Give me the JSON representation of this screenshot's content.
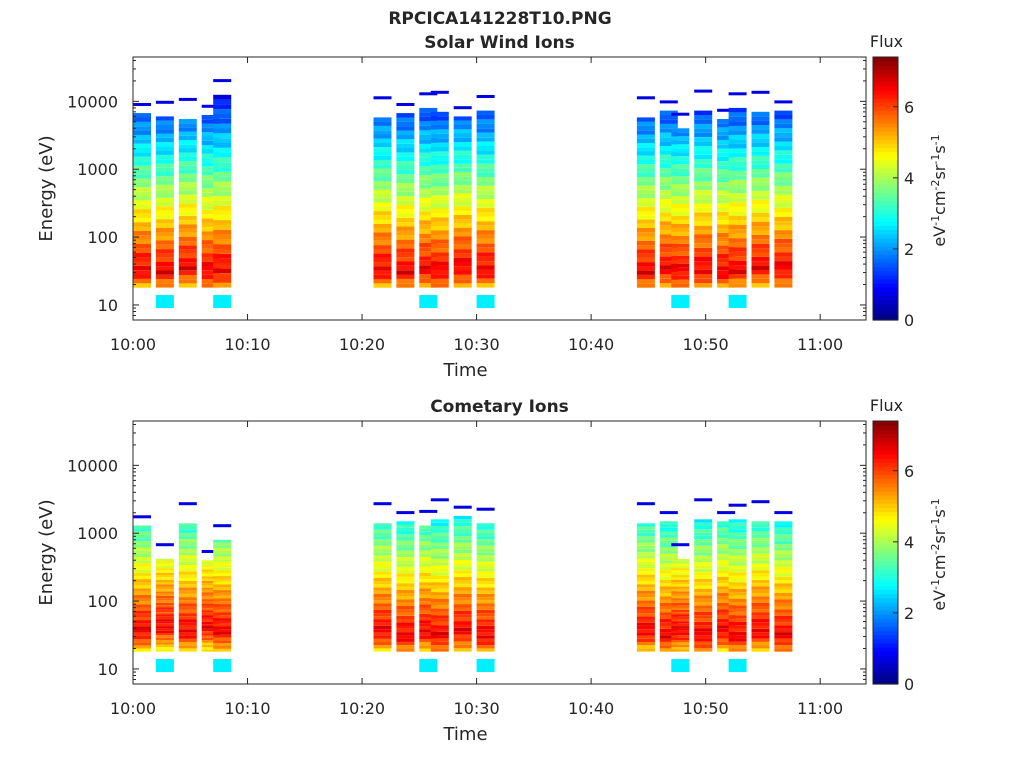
{
  "figure_title": "RPCICA141228T10.PNG",
  "colors": {
    "axis": "#262626",
    "colormap": [
      "#00007f",
      "#0000ff",
      "#007fff",
      "#00ffff",
      "#7fff7f",
      "#ffff00",
      "#ff7f00",
      "#ff0000",
      "#7f0000"
    ]
  },
  "chart_data": [
    {
      "type": "heatmap",
      "title": "Solar Wind Ions",
      "xlabel": "Time",
      "ylabel": "Energy (eV)",
      "y_scale": "log",
      "ylim": [
        6,
        45000
      ],
      "x_ticks": [
        "10:00",
        "10:10",
        "10:20",
        "10:30",
        "10:40",
        "10:50",
        "11:00"
      ],
      "y_ticks": [
        "10",
        "100",
        "1000",
        "10000"
      ],
      "colorbar": {
        "label": "Flux",
        "unit": "eV-1cm-2sr-1s-1",
        "range": [
          0,
          7.4
        ],
        "ticks": [
          "0",
          "2",
          "4",
          "6"
        ]
      },
      "blocks": [
        {
          "start": "10:00",
          "peak_eV": 32,
          "max_eV": 6700
        },
        {
          "start": "10:02",
          "peak_eV": 30,
          "max_eV": 6000
        },
        {
          "start": "10:04",
          "peak_eV": 34,
          "max_eV": 5500
        },
        {
          "start": "10:06",
          "peak_eV": 30,
          "max_eV": 6300
        },
        {
          "start": "10:07",
          "peak_eV": 32,
          "max_eV": 12500
        },
        {
          "start": "10:21",
          "peak_eV": 32,
          "max_eV": 5800
        },
        {
          "start": "10:23",
          "peak_eV": 30,
          "max_eV": 6700
        },
        {
          "start": "10:25",
          "peak_eV": 32,
          "max_eV": 8000
        },
        {
          "start": "10:26",
          "peak_eV": 30,
          "max_eV": 7000
        },
        {
          "start": "10:28",
          "peak_eV": 34,
          "max_eV": 6000
        },
        {
          "start": "10:30",
          "peak_eV": 32,
          "max_eV": 7300
        },
        {
          "start": "10:44",
          "peak_eV": 30,
          "max_eV": 5800
        },
        {
          "start": "10:46",
          "peak_eV": 32,
          "max_eV": 7300
        },
        {
          "start": "10:47",
          "peak_eV": 30,
          "max_eV": 4000
        },
        {
          "start": "10:49",
          "peak_eV": 32,
          "max_eV": 7300
        },
        {
          "start": "10:51",
          "peak_eV": 30,
          "max_eV": 5500
        },
        {
          "start": "10:52",
          "peak_eV": 32,
          "max_eV": 8000
        },
        {
          "start": "10:54",
          "peak_eV": 34,
          "max_eV": 7000
        },
        {
          "start": "10:56",
          "peak_eV": 32,
          "max_eV": 7300
        }
      ]
    },
    {
      "type": "heatmap",
      "title": "Cometary Ions",
      "xlabel": "Time",
      "ylabel": "Energy (eV)",
      "y_scale": "log",
      "ylim": [
        6,
        45000
      ],
      "x_ticks": [
        "10:00",
        "10:10",
        "10:20",
        "10:30",
        "10:40",
        "10:50",
        "11:00"
      ],
      "y_ticks": [
        "10",
        "100",
        "1000",
        "10000"
      ],
      "colorbar": {
        "label": "Flux",
        "unit": "eV-1cm-2sr-1s-1",
        "range": [
          0,
          7.4
        ],
        "ticks": [
          "0",
          "2",
          "4",
          "6"
        ]
      },
      "blocks": [
        {
          "start": "10:00",
          "peak_eV": 35,
          "max_eV": 1300
        },
        {
          "start": "10:02",
          "peak_eV": 40,
          "max_eV": 420
        },
        {
          "start": "10:04",
          "peak_eV": 35,
          "max_eV": 1400
        },
        {
          "start": "10:06",
          "peak_eV": 40,
          "max_eV": 400
        },
        {
          "start": "10:07",
          "peak_eV": 35,
          "max_eV": 800
        },
        {
          "start": "10:21",
          "peak_eV": 35,
          "max_eV": 1400
        },
        {
          "start": "10:23",
          "peak_eV": 30,
          "max_eV": 1500
        },
        {
          "start": "10:25",
          "peak_eV": 35,
          "max_eV": 1300
        },
        {
          "start": "10:26",
          "peak_eV": 30,
          "max_eV": 1600
        },
        {
          "start": "10:28",
          "peak_eV": 35,
          "max_eV": 1800
        },
        {
          "start": "10:30",
          "peak_eV": 30,
          "max_eV": 1400
        },
        {
          "start": "10:44",
          "peak_eV": 35,
          "max_eV": 1400
        },
        {
          "start": "10:46",
          "peak_eV": 30,
          "max_eV": 1500
        },
        {
          "start": "10:47",
          "peak_eV": 35,
          "max_eV": 420
        },
        {
          "start": "10:49",
          "peak_eV": 30,
          "max_eV": 1600
        },
        {
          "start": "10:51",
          "peak_eV": 35,
          "max_eV": 1500
        },
        {
          "start": "10:52",
          "peak_eV": 30,
          "max_eV": 1600
        },
        {
          "start": "10:54",
          "peak_eV": 35,
          "max_eV": 1500
        },
        {
          "start": "10:56",
          "peak_eV": 30,
          "max_eV": 1500
        }
      ]
    }
  ]
}
